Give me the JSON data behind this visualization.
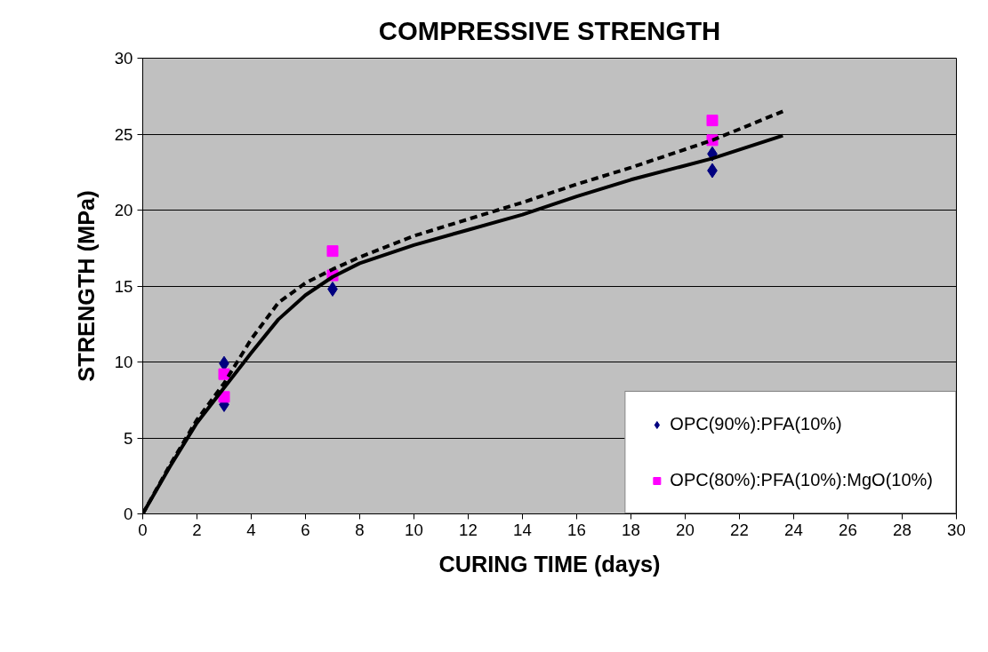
{
  "chart_data": {
    "type": "scatter",
    "title": "COMPRESSIVE STRENGTH",
    "xlabel": "CURING TIME (days)",
    "ylabel": "STRENGTH (MPa)",
    "xlim": [
      0,
      30
    ],
    "xticks": [
      0,
      2,
      4,
      6,
      8,
      10,
      12,
      14,
      16,
      18,
      20,
      22,
      24,
      26,
      28,
      30
    ],
    "ylim": [
      0,
      30
    ],
    "yticks": [
      0,
      5,
      10,
      15,
      20,
      25,
      30
    ],
    "grid": "y",
    "legend": "bottom right",
    "series": [
      {
        "name": "OPC(90%):PFA(10%)",
        "color": "#000080",
        "marker": "diamond",
        "x": [
          3,
          3,
          7,
          21,
          21
        ],
        "values": [
          9.9,
          7.2,
          14.8,
          23.7,
          22.6
        ]
      },
      {
        "name": "OPC(80%):PFA(10%):MgO(10%)",
        "color": "#ff00ff",
        "marker": "square",
        "x": [
          3,
          3,
          7,
          7,
          21,
          21
        ],
        "values": [
          9.2,
          7.7,
          17.3,
          15.7,
          25.9,
          24.6
        ]
      },
      {
        "type": "line",
        "color": "#000000",
        "line_style": "solid",
        "marker": "none",
        "x": [
          0,
          1,
          2,
          3,
          4,
          5,
          6,
          7,
          8,
          10,
          12,
          14,
          16,
          18,
          21,
          23.6
        ],
        "values": [
          0,
          3.1,
          6.0,
          8.3,
          10.6,
          12.8,
          14.4,
          15.6,
          16.5,
          17.7,
          18.7,
          19.7,
          20.9,
          22.0,
          23.4,
          24.9
        ]
      },
      {
        "type": "line",
        "color": "#000000",
        "line_style": "dashed",
        "marker": "none",
        "x": [
          0,
          1,
          2,
          3,
          4,
          5,
          6,
          7,
          8,
          10,
          12,
          14,
          16,
          18,
          21,
          23.6
        ],
        "values": [
          0,
          3.2,
          6.2,
          8.6,
          11.5,
          13.9,
          15.2,
          16.1,
          16.9,
          18.3,
          19.4,
          20.5,
          21.7,
          22.8,
          24.6,
          26.5
        ]
      }
    ]
  }
}
